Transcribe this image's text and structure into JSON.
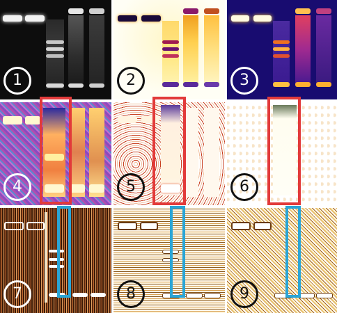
{
  "figure": {
    "panels": [
      {
        "label": "1",
        "style": "ethidium-grayscale"
      },
      {
        "label": "2",
        "style": "inverted-fire"
      },
      {
        "label": "3",
        "style": "fire"
      },
      {
        "label": "4",
        "style": "false-color-noise"
      },
      {
        "label": "5",
        "style": "inverted-thresholded"
      },
      {
        "label": "6",
        "style": "inverted-high-threshold"
      },
      {
        "label": "7",
        "style": "edge-detect-dark"
      },
      {
        "label": "8",
        "style": "edge-detect-light"
      },
      {
        "label": "9",
        "style": "edge-detect-texture"
      }
    ],
    "highlight_colors": {
      "red": "#e23a3a",
      "blue": "#2aa5d6"
    }
  }
}
